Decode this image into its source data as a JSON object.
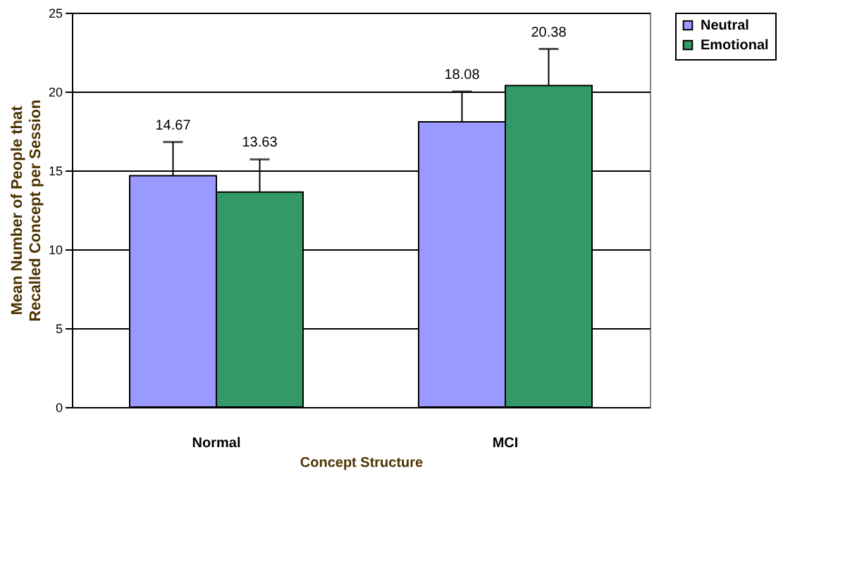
{
  "chart_data": {
    "type": "bar",
    "xlabel": "Concept Structure",
    "ylabel": "Mean Number of People that Recalled Concept per Session",
    "categories": [
      "Normal",
      "MCI"
    ],
    "series": [
      {
        "name": "Neutral",
        "color": "#9999ff",
        "values": [
          14.67,
          18.08
        ],
        "errors": [
          [
            14.67,
            16.8
          ],
          [
            18.08,
            20.0
          ]
        ]
      },
      {
        "name": "Emotional",
        "color": "#339966",
        "values": [
          13.63,
          20.38
        ],
        "errors": [
          [
            13.63,
            15.7
          ],
          [
            20.38,
            22.7
          ]
        ]
      }
    ],
    "ylim": [
      0,
      25
    ],
    "yticks": [
      0,
      5,
      10,
      15,
      20,
      25
    ],
    "grid": "y",
    "legend": "right",
    "data_labels": true
  }
}
